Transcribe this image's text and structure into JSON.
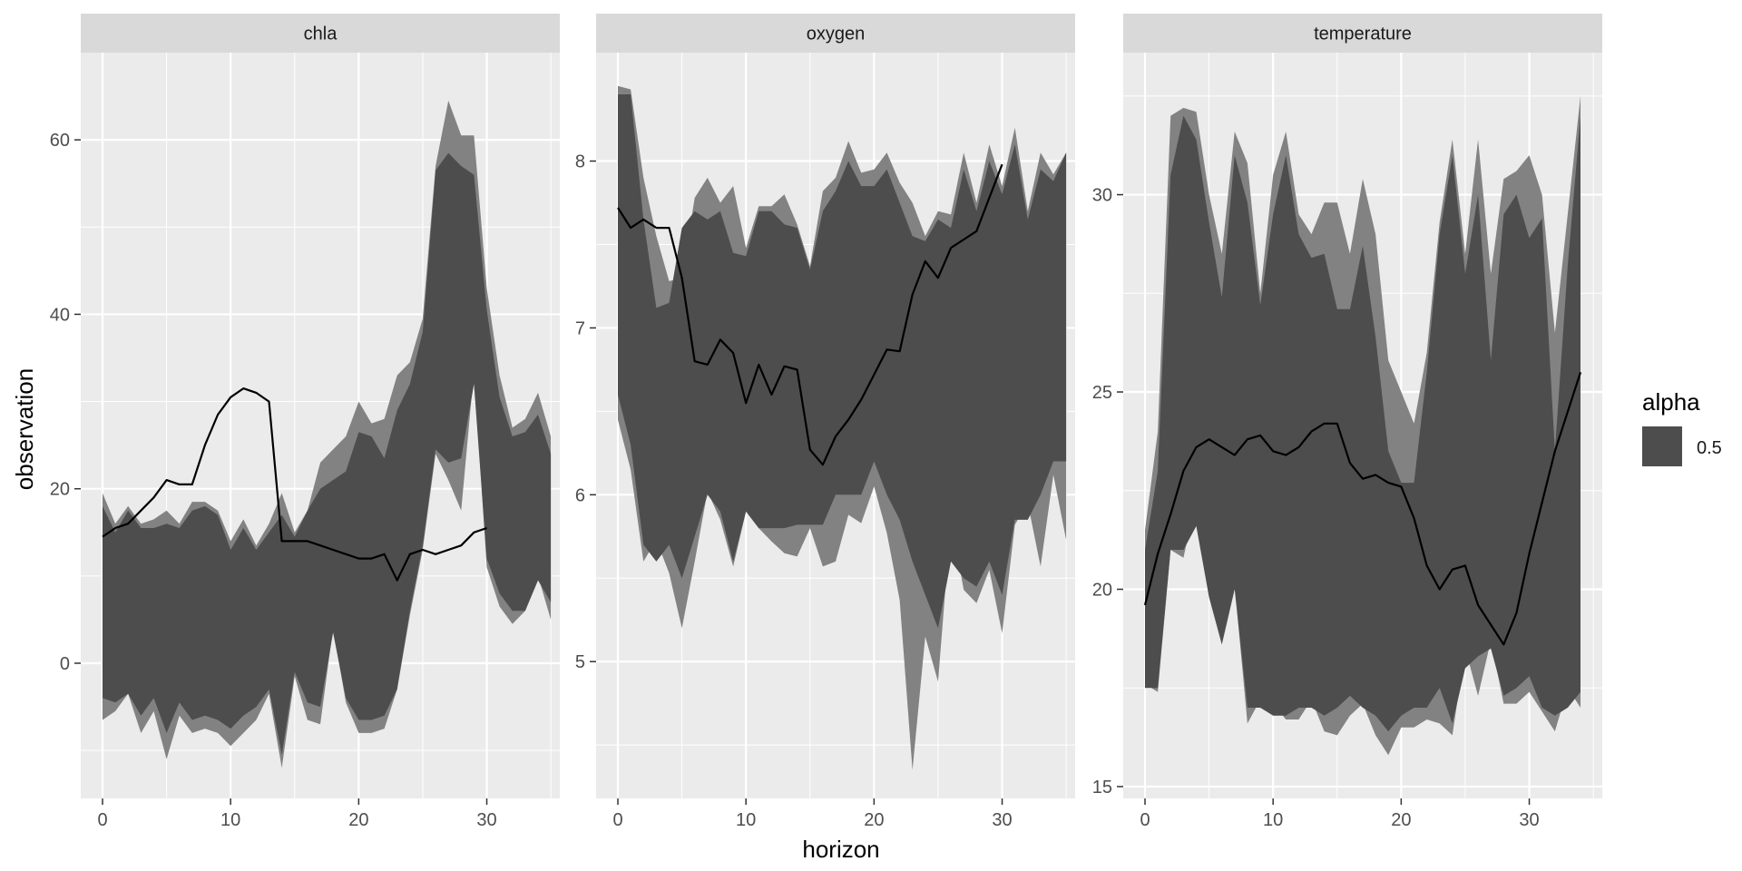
{
  "chart_data": {
    "type": "area",
    "xlabel": "horizon",
    "ylabel": "observation",
    "colors": {
      "panel_bg": "#ebebeb",
      "strip_bg": "#d9d9d9",
      "grid": "#ffffff",
      "outer_band": "#828282",
      "inner_band": "#4d4d4d",
      "line": "#000000"
    },
    "legend": {
      "title": "alpha",
      "label": "0.5",
      "placement": "right"
    },
    "panels": [
      {
        "strip": "chla",
        "xlim": [
          -1.7,
          35.7
        ],
        "ylim": [
          -15.5,
          70
        ],
        "xticks": [
          0,
          10,
          20,
          30
        ],
        "xtick_labels": [
          "0",
          "10",
          "20",
          "30"
        ],
        "yticks": [
          0,
          20,
          40,
          60
        ],
        "ytick_labels": [
          "0",
          "20",
          "40",
          "60"
        ],
        "ymajor_grid": [
          0,
          20,
          40,
          60
        ],
        "yminor_grid": [
          -10,
          10,
          30,
          50
        ],
        "outer_upper": [
          19.5,
          16,
          18,
          16,
          16.5,
          17.5,
          16,
          18.5,
          18.5,
          17.5,
          14,
          16.5,
          13.5,
          16,
          19.5,
          15,
          17.5,
          23,
          24.5,
          26,
          30,
          27.5,
          28,
          33,
          34.5,
          39.5,
          57,
          64.5,
          60.5,
          60.5,
          43,
          33,
          27,
          28,
          31,
          26
        ],
        "outer_lower": [
          -6.5,
          -5.5,
          -3.5,
          -8,
          -5.5,
          -11,
          -6,
          -8,
          -7.5,
          -8,
          -9.5,
          -8,
          -6.5,
          -3.5,
          -12,
          -1.5,
          -6.5,
          -7,
          4,
          -4.5,
          -8,
          -8,
          -7.5,
          -3,
          5.5,
          13,
          24,
          21,
          17.5,
          33.5,
          11,
          6.5,
          4.5,
          6,
          10,
          5
        ],
        "inner_upper": [
          18,
          15,
          17.5,
          15.5,
          15.5,
          16,
          15.5,
          17.5,
          18,
          17,
          13,
          15.5,
          13,
          15,
          17,
          14.5,
          17.5,
          20,
          21,
          22,
          26.5,
          26,
          23.5,
          29,
          32,
          38,
          56.5,
          58.5,
          57,
          56,
          40.5,
          30.5,
          26,
          26.5,
          28.5,
          24
        ],
        "inner_lower": [
          -4,
          -4.5,
          -3.5,
          -6,
          -4,
          -8,
          -4.5,
          -6.5,
          -6,
          -6.5,
          -7.5,
          -6,
          -5,
          -3,
          -10.5,
          -1,
          -4.5,
          -5,
          3.5,
          -4,
          -6.5,
          -6.5,
          -6,
          -3,
          6,
          13.5,
          24.5,
          23,
          23.5,
          32,
          12,
          8,
          6,
          6,
          9.5,
          7
        ],
        "line_x": [
          0,
          1,
          2,
          3,
          4,
          5,
          6,
          7,
          8,
          9,
          10,
          11,
          12,
          13,
          14,
          15,
          16,
          17,
          18,
          19,
          20,
          21,
          22,
          23,
          24,
          25,
          26,
          27,
          28,
          29,
          30
        ],
        "line_y": [
          14.5,
          15.5,
          16,
          17.5,
          19,
          21,
          20.5,
          20.5,
          25,
          28.5,
          30.5,
          31.5,
          31,
          30,
          14,
          14,
          14,
          13.5,
          13,
          12.5,
          12,
          12,
          12.5,
          9.5,
          12.5,
          13,
          12.5,
          13,
          13.5,
          15,
          15.5
        ]
      },
      {
        "strip": "oxygen",
        "xlim": [
          -1.7,
          35.7
        ],
        "ylim": [
          4.18,
          8.65
        ],
        "xticks": [
          0,
          10,
          20,
          30
        ],
        "xtick_labels": [
          "0",
          "10",
          "20",
          "30"
        ],
        "yticks": [
          5,
          6,
          7,
          8
        ],
        "ytick_labels": [
          "5",
          "6",
          "7",
          "8"
        ],
        "ymajor_grid": [
          5,
          6,
          7,
          8
        ],
        "yminor_grid": [
          4.5,
          5.5,
          6.5,
          7.5
        ],
        "outer_upper": [
          8.45,
          8.43,
          7.9,
          7.55,
          7.28,
          7.3,
          7.78,
          7.9,
          7.75,
          7.85,
          7.48,
          7.73,
          7.73,
          7.8,
          7.62,
          7.37,
          7.82,
          7.9,
          8.12,
          7.93,
          7.95,
          8.05,
          7.87,
          7.75,
          7.55,
          7.7,
          7.68,
          8.05,
          7.75,
          8.1,
          7.85,
          8.2,
          7.7,
          8.05,
          7.92,
          8.05
        ],
        "outer_lower": [
          6.45,
          6.15,
          5.6,
          5.73,
          5.53,
          5.2,
          5.6,
          6.02,
          5.85,
          5.57,
          5.9,
          5.8,
          5.72,
          5.65,
          5.63,
          5.8,
          5.57,
          5.6,
          5.88,
          5.83,
          6.05,
          5.77,
          5.37,
          4.35,
          5.15,
          4.88,
          5.85,
          5.43,
          5.35,
          5.55,
          5.17,
          5.82,
          5.95,
          5.57,
          6.12,
          5.73
        ],
        "inner_upper": [
          8.4,
          8.4,
          7.65,
          7.12,
          7.15,
          7.6,
          7.7,
          7.65,
          7.7,
          7.45,
          7.43,
          7.7,
          7.7,
          7.62,
          7.6,
          7.35,
          7.7,
          7.82,
          8,
          7.85,
          7.85,
          7.95,
          7.75,
          7.55,
          7.52,
          7.65,
          7.6,
          7.95,
          7.7,
          8,
          7.8,
          8.1,
          7.65,
          7.95,
          7.88,
          8.05
        ],
        "inner_lower": [
          6.6,
          6.3,
          5.7,
          5.6,
          5.7,
          5.5,
          5.75,
          6,
          5.9,
          5.6,
          5.9,
          5.8,
          5.8,
          5.8,
          5.82,
          5.82,
          5.82,
          6,
          6,
          6,
          6.2,
          6,
          5.85,
          5.6,
          5.4,
          5.2,
          5.6,
          5.5,
          5.45,
          5.6,
          5.4,
          5.85,
          5.85,
          6,
          6.2,
          6.2
        ],
        "line_x": [
          0,
          1,
          2,
          3,
          4,
          5,
          6,
          7,
          8,
          9,
          10,
          11,
          12,
          13,
          14,
          15,
          16,
          17,
          18,
          19,
          20,
          21,
          22,
          23,
          24,
          25,
          26,
          27,
          28,
          29,
          30
        ],
        "line_y": [
          7.72,
          7.6,
          7.65,
          7.6,
          7.6,
          7.3,
          6.8,
          6.78,
          6.93,
          6.85,
          6.55,
          6.78,
          6.6,
          6.77,
          6.75,
          6.27,
          6.18,
          6.35,
          6.45,
          6.57,
          6.72,
          6.87,
          6.86,
          7.2,
          7.4,
          7.3,
          7.48,
          7.53,
          7.58,
          7.78,
          7.98
        ]
      },
      {
        "strip": "temperature",
        "xlim": [
          -1.7,
          35.7
        ],
        "ylim": [
          14.7,
          33.6
        ],
        "xticks": [
          0,
          10,
          20,
          30
        ],
        "xtick_labels": [
          "0",
          "10",
          "20",
          "30"
        ],
        "yticks": [
          15,
          20,
          25,
          30
        ],
        "ytick_labels": [
          "15",
          "20",
          "25",
          "30"
        ],
        "ymajor_grid": [
          15,
          20,
          25,
          30
        ],
        "yminor_grid": [
          17.5,
          22.5,
          27.5,
          32.5
        ],
        "outer_upper": [
          21.5,
          24,
          32,
          32.2,
          32.1,
          30,
          28.5,
          31.6,
          30.8,
          27.5,
          30.5,
          31.6,
          29.5,
          29,
          29.8,
          29.8,
          28.5,
          30.4,
          29,
          25.8,
          25,
          24.2,
          26,
          29.3,
          31.4,
          28.5,
          31.4,
          28,
          30.4,
          30.6,
          31,
          30,
          26.5,
          29.5,
          32.5
        ],
        "outer_lower": [
          17.6,
          17.4,
          21,
          20.8,
          22.3,
          20,
          18.7,
          20.1,
          16.6,
          17.2,
          17.1,
          16.7,
          16.7,
          17.2,
          16.4,
          16.3,
          16.8,
          17.1,
          16.3,
          15.8,
          16.5,
          16.5,
          16.7,
          16.6,
          16.3,
          18.5,
          17.3,
          18.7,
          17.1,
          17.1,
          17.4,
          16.9,
          16.4,
          17.5,
          17
        ],
        "inner_upper": [
          21,
          23,
          30.5,
          32,
          31.4,
          29.3,
          27.4,
          31,
          29.8,
          27.2,
          29.5,
          31,
          29,
          28.4,
          28.5,
          27.1,
          27.1,
          28.7,
          26.4,
          23.5,
          22.7,
          22.7,
          25.5,
          29,
          31,
          28,
          30,
          25.8,
          29.5,
          30,
          28.9,
          29.4,
          23.5,
          28.2,
          32
        ],
        "inner_lower": [
          17.5,
          17.5,
          21,
          21,
          21.6,
          19.8,
          18.6,
          20,
          17,
          17,
          16.8,
          16.8,
          17,
          17,
          16.8,
          17,
          17.3,
          17,
          16.8,
          16.4,
          16.8,
          17,
          17,
          17.5,
          16.6,
          18,
          18.3,
          18.5,
          17.3,
          17.5,
          17.8,
          17,
          16.8,
          17,
          17.4
        ],
        "line_x": [
          0,
          1,
          2,
          3,
          4,
          5,
          6,
          7,
          8,
          9,
          10,
          11,
          12,
          13,
          14,
          15,
          16,
          17,
          18,
          19,
          20,
          21,
          22,
          23,
          24,
          25,
          26,
          27,
          28,
          29,
          30,
          31,
          32,
          33,
          34
        ],
        "line_y": [
          19.6,
          20.9,
          21.9,
          23,
          23.6,
          23.8,
          23.6,
          23.4,
          23.8,
          23.9,
          23.5,
          23.4,
          23.6,
          24,
          24.2,
          24.2,
          23.2,
          22.8,
          22.9,
          22.7,
          22.6,
          21.8,
          20.6,
          20,
          20.5,
          20.6,
          19.6,
          19.1,
          18.6,
          19.4,
          20.9,
          22.2,
          23.5,
          24.5,
          25.5
        ]
      }
    ]
  }
}
